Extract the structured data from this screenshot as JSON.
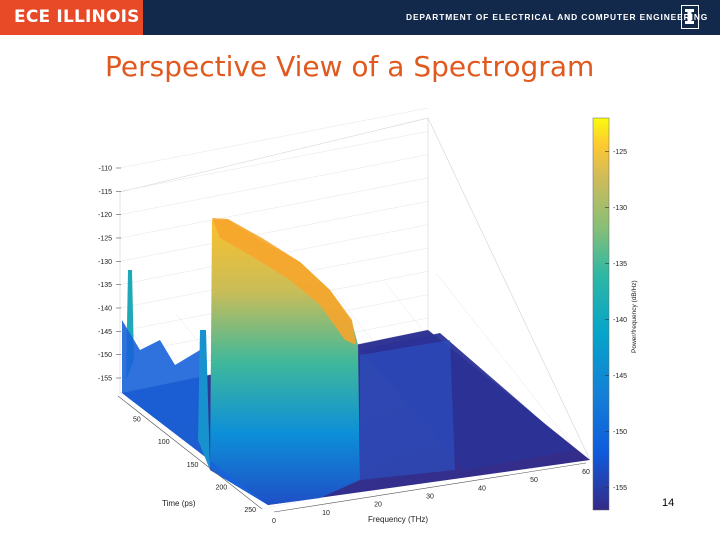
{
  "header": {
    "brand": "ECE ILLINOIS",
    "department": "DEPARTMENT OF ELECTRICAL AND COMPUTER ENGINEERING",
    "logo_icon": "block-i-logo-icon",
    "colors": {
      "banner": "#13294b",
      "brand_box": "#e84a27",
      "title": "#e05a20"
    }
  },
  "slide": {
    "title": "Perspective View of a Spectrogram",
    "page_number": "14"
  },
  "chart_data": {
    "type": "surface3d",
    "title": "",
    "xlabel": "Frequency (THz)",
    "ylabel": "Time (ps)",
    "zlabel": "",
    "x_ticks": [
      0,
      10,
      20,
      30,
      40,
      50,
      60
    ],
    "y_ticks": [
      50,
      100,
      150,
      200,
      250
    ],
    "z_ticks": [
      -110,
      -115,
      -120,
      -125,
      -130,
      -135,
      -140,
      -145,
      -150,
      -155
    ],
    "xlim": [
      0,
      60
    ],
    "ylim": [
      0,
      250
    ],
    "zlim": [
      -160,
      -110
    ],
    "colorbar": {
      "label": "Power/frequency (dB/Hz)",
      "ticks": [
        -125,
        -130,
        -135,
        -140,
        -145,
        -150,
        -155
      ],
      "range": [
        -157,
        -122
      ],
      "colormap": "parula"
    },
    "grid": true,
    "features": [
      {
        "name": "main ridge",
        "frequency_range_THz": [
          10,
          30
        ],
        "time_range_ps": [
          0,
          240
        ],
        "peak_dB": -119
      },
      {
        "name": "low-frequency spike",
        "frequency_THz": 2,
        "time_ps": 230,
        "peak_dB": -135
      },
      {
        "name": "floor",
        "level_dB": -157
      }
    ]
  }
}
